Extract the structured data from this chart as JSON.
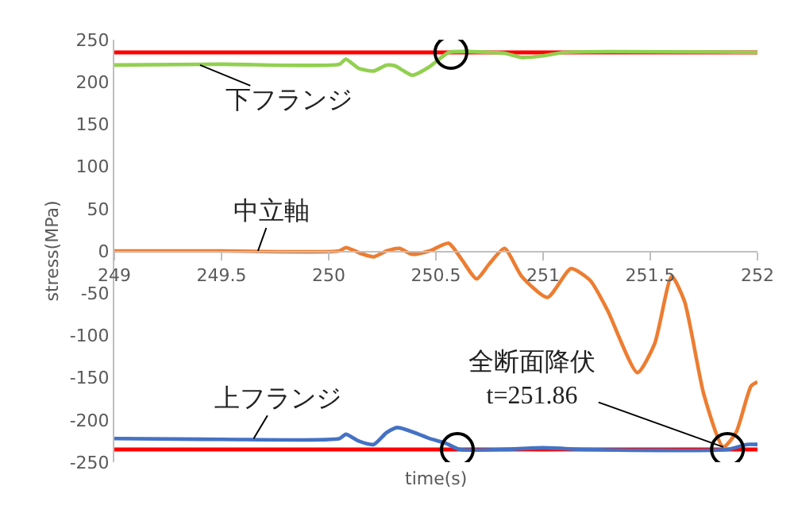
{
  "chart_data": {
    "type": "line",
    "xlabel": "time(s)",
    "ylabel": "stress(MPa)",
    "xlim": [
      249,
      252
    ],
    "xticks": [
      249,
      249.5,
      250,
      250.5,
      251,
      251.5,
      252
    ],
    "ylim": [
      -250,
      250
    ],
    "yticks": [
      -250,
      -200,
      -150,
      -100,
      -50,
      0,
      50,
      100,
      150,
      200,
      250
    ],
    "marker": "none",
    "line_style": "solid",
    "series": [
      {
        "color": "#92d050",
        "x": [
          249,
          249.5,
          250.05,
          250.08,
          250.14,
          250.21,
          250.27,
          250.31,
          250.39,
          250.47,
          250.56,
          250.65,
          250.75,
          250.82,
          250.9,
          251.0,
          251.1,
          252
        ],
        "values": [
          220,
          221,
          221,
          227,
          216,
          213,
          220,
          219,
          208,
          218,
          235,
          236,
          235,
          234,
          229,
          231,
          235,
          235
        ]
      },
      {
        "color": "#ed7d31",
        "x": [
          249,
          249.5,
          250.05,
          250.08,
          250.15,
          250.21,
          250.27,
          250.33,
          250.39,
          250.47,
          250.56,
          250.62,
          250.69,
          250.75,
          250.82,
          250.9,
          251.02,
          251.13,
          251.22,
          251.3,
          251.44,
          251.52,
          251.6,
          251.66,
          251.75,
          251.84,
          251.9,
          251.97,
          252
        ],
        "values": [
          0,
          0,
          0,
          4,
          -3,
          -7,
          0,
          3,
          -4,
          0,
          9,
          -10,
          -33,
          -15,
          3,
          -30,
          -55,
          -21,
          -35,
          -70,
          -144,
          -110,
          -30,
          -60,
          -170,
          -232,
          -215,
          -160,
          -155
        ]
      },
      {
        "color": "#4472c4",
        "x": [
          249,
          249.5,
          250.05,
          250.08,
          250.14,
          250.21,
          250.27,
          250.32,
          250.4,
          250.47,
          250.55,
          250.61,
          250.8,
          251.0,
          251.2,
          251.86,
          251.95,
          252
        ],
        "values": [
          -222,
          -223,
          -222,
          -217,
          -225,
          -229,
          -215,
          -209,
          -215,
          -222,
          -228,
          -235,
          -235,
          -233,
          -235,
          -235,
          -229,
          -229
        ]
      },
      {
        "type": "scatter",
        "marker": "circle",
        "color": "#000000",
        "x": [
          250.57,
          250.6,
          251.86
        ],
        "values": [
          235,
          -235,
          -235
        ]
      }
    ],
    "ref_lines": [
      {
        "axis": "y",
        "value": 235,
        "color": "#ff0000"
      },
      {
        "axis": "y",
        "value": -235,
        "color": "#ff0000"
      }
    ],
    "annotations": [
      {
        "text": "下フランジ",
        "x": 249.4,
        "y": 220
      },
      {
        "text": "中立軸",
        "x": 249.67,
        "y": 0
      },
      {
        "text": "上フランジ",
        "x": 249.65,
        "y": -222
      },
      {
        "text": "全断面降伏\nt=251.86",
        "x": 251.84,
        "y": -232
      }
    ]
  }
}
